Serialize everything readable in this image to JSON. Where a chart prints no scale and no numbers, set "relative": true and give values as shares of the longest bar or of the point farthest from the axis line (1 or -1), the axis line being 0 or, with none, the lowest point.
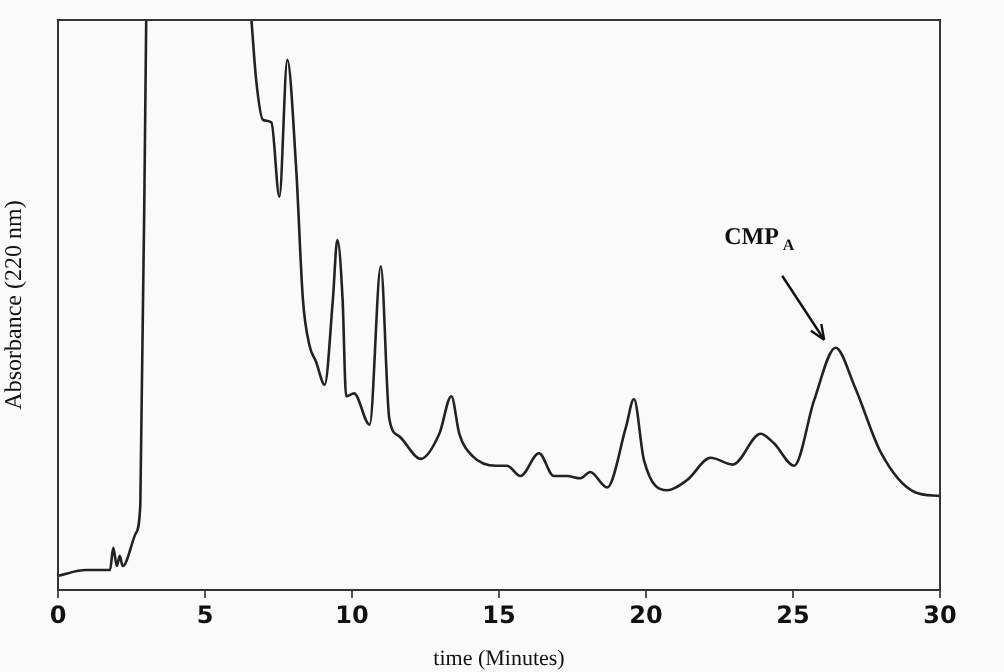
{
  "chart_data": {
    "type": "line",
    "relative": true,
    "xlabel": "time (Minutes)",
    "ylabel": "Absorbance (220 nm)",
    "xlim": [
      0,
      30
    ],
    "xticks": [
      0,
      5,
      10,
      15,
      20,
      25,
      30
    ],
    "tick_labels": "x",
    "grid": false,
    "legend": false,
    "marker": "none",
    "line_style": "solid",
    "annotations": [
      {
        "text": "CMP$_{A}$",
        "x": 26.4,
        "y": 0.425
      }
    ],
    "series": [
      {
        "color": "#222222",
        "x": [
          0,
          0.95,
          1.77,
          1.88,
          2.0,
          2.1,
          2.2,
          2.65,
          2.8,
          3.0,
          4.8,
          6.58,
          6.74,
          6.97,
          7.26,
          7.53,
          7.8,
          8.1,
          8.33,
          8.55,
          8.78,
          9.07,
          9.35,
          9.5,
          9.68,
          9.8,
          10.07,
          10.6,
          10.98,
          11.27,
          11.6,
          12.34,
          12.97,
          13.38,
          13.65,
          14.1,
          14.9,
          15.27,
          15.73,
          16.36,
          16.86,
          17.31,
          17.77,
          18.1,
          18.68,
          19.32,
          19.59,
          19.93,
          20.72,
          21.4,
          22.2,
          22.95,
          23.9,
          24.36,
          25.04,
          25.72,
          26.45,
          27.09,
          28.0,
          29.13,
          30
        ],
        "values": [
          0.025,
          0.035,
          0.035,
          0.074,
          0.042,
          0.06,
          0.042,
          0.1,
          0.15,
          1.0,
          null,
          1.0,
          0.895,
          0.825,
          0.82,
          0.69,
          0.93,
          0.74,
          0.51,
          0.43,
          0.4,
          0.36,
          0.51,
          0.614,
          0.51,
          0.34,
          0.345,
          0.29,
          0.568,
          0.3,
          0.27,
          0.23,
          0.274,
          0.34,
          0.274,
          0.235,
          0.218,
          0.218,
          0.2,
          0.24,
          0.2,
          0.2,
          0.196,
          0.207,
          0.18,
          0.286,
          0.335,
          0.228,
          0.175,
          0.193,
          0.232,
          0.22,
          0.274,
          0.257,
          0.218,
          0.333,
          0.425,
          0.358,
          0.24,
          0.172,
          0.165
        ]
      }
    ]
  }
}
